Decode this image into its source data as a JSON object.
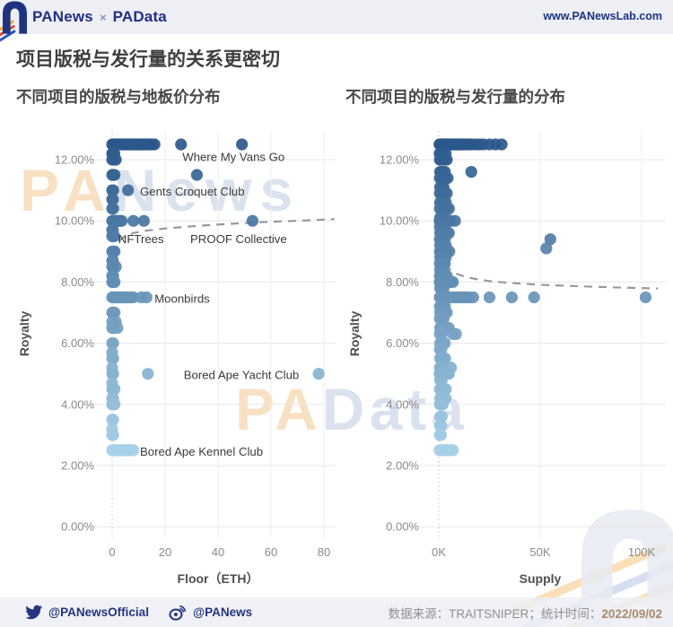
{
  "header": {
    "brand1": "PANews",
    "separator": "×",
    "brand2": "PAData",
    "website": "www.PANewsLab.com"
  },
  "title": "项目版税与发行量的关系更密切",
  "watermarks": {
    "wm_top": "PANews",
    "wm_top_pa": "PA",
    "wm_top_rest": "News",
    "wm_mid_pa": "PA",
    "wm_mid_rest": "Data"
  },
  "footer": {
    "twitter_handle": "@PANewsOfficial",
    "weibo_handle": "@PANews",
    "source_label": "数据来源：",
    "source_value": "TRAITSNIPER；",
    "time_label": "统计时间：",
    "date": "2022/09/02"
  },
  "colors": {
    "brand_navy": "#1e3480",
    "stripe_orange": "#f5a63b",
    "stripe_red": "#e2492e",
    "stripe_blue": "#2b55c8",
    "point_dark": "#2b588a",
    "point_light": "#a6d0e8",
    "trend_gray": "#999999",
    "grid_gray": "#e7e7e7",
    "zero_line_gray": "#c4c4c4",
    "tick_gray": "#8a8a8a",
    "axis_title_gray": "#4f4f4f",
    "annotation_gray": "#3a3a3a",
    "bar_bg": "#edeff5",
    "date_orange": "#a98a6a"
  },
  "chart_data": [
    {
      "type": "scatter",
      "title": "不同项目的版税与地板价分布",
      "xlabel": "Floor（ETH）",
      "ylabel": "Royalty",
      "x_unit": "ETH",
      "xlim": [
        0,
        85
      ],
      "ylim": [
        0,
        12.9
      ],
      "grid": true,
      "legend": "none",
      "color_encoding": "royalty value: light blue (low) to dark steel blue (high)",
      "xticks": [
        {
          "v": 0,
          "label": "0"
        },
        {
          "v": 20,
          "label": "20"
        },
        {
          "v": 40,
          "label": "40"
        },
        {
          "v": 60,
          "label": "60"
        },
        {
          "v": 80,
          "label": "80"
        }
      ],
      "yticks": [
        {
          "v": 0,
          "label": "0.00%"
        },
        {
          "v": 2,
          "label": "2.00%"
        },
        {
          "v": 4,
          "label": "4.00%"
        },
        {
          "v": 6,
          "label": "6.00%"
        },
        {
          "v": 8,
          "label": "8.00%"
        },
        {
          "v": 10,
          "label": "10.00%"
        },
        {
          "v": 12,
          "label": "12.00%"
        }
      ],
      "trend_style": "dashed",
      "trend": [
        [
          1.2,
          8.4
        ],
        [
          1.4,
          8.8
        ],
        [
          1.7,
          9.05
        ],
        [
          2,
          9.2
        ],
        [
          3,
          9.38
        ],
        [
          5,
          9.5
        ],
        [
          8,
          9.6
        ],
        [
          12,
          9.67
        ],
        [
          20,
          9.75
        ],
        [
          30,
          9.82
        ],
        [
          40,
          9.88
        ],
        [
          50,
          9.93
        ],
        [
          60,
          9.97
        ],
        [
          70,
          10.0
        ],
        [
          80,
          10.04
        ],
        [
          84,
          10.06
        ]
      ],
      "annotations": [
        {
          "text": "Where My Vans Go",
          "x": 26.5,
          "y": 12.1,
          "point": [
            49,
            12.5
          ]
        },
        {
          "text": "Gents Croquet Club",
          "x": 10.5,
          "y": 10.97,
          "point": [
            6,
            11
          ]
        },
        {
          "text": "NFTrees",
          "x": 2.3,
          "y": 9.42,
          "point": [
            0.5,
            9.5
          ]
        },
        {
          "text": "PROOF Collective",
          "x": 29.5,
          "y": 9.42,
          "point": [
            53,
            10
          ]
        },
        {
          "text": "Moonbirds",
          "x": 16,
          "y": 7.47,
          "point": [
            13,
            7.5
          ]
        },
        {
          "text": "Bored Ape Yacht Club",
          "x": 27,
          "y": 4.97,
          "point": [
            78,
            5
          ]
        },
        {
          "text": "Bored Ape Kennel Club",
          "x": 10.5,
          "y": 2.47,
          "point": [
            8,
            2.5
          ]
        }
      ],
      "point_rows": [
        {
          "y": 12.5,
          "x": [
            0,
            0.4,
            0.8,
            1.2,
            1.6,
            2,
            2.5,
            3,
            3.5,
            4,
            4.5,
            5,
            5.5,
            6,
            6.5,
            7,
            7.5,
            8,
            8.5,
            9,
            9.5,
            10,
            10.5,
            11,
            11.5,
            12,
            12.5,
            13,
            13.5,
            14,
            15,
            16,
            26,
            49
          ]
        },
        {
          "y": 12.2,
          "x": [
            0,
            0.4,
            0.8
          ]
        },
        {
          "y": 12.0,
          "x": [
            0,
            0.4,
            0.9,
            1.4
          ]
        },
        {
          "y": 11.5,
          "x": [
            0,
            0.4,
            0.9,
            32
          ]
        },
        {
          "y": 11.0,
          "x": [
            0,
            0.4,
            6
          ]
        },
        {
          "y": 10.7,
          "x": [
            0,
            0.3
          ]
        },
        {
          "y": 10.4,
          "x": [
            0,
            0.4
          ]
        },
        {
          "y": 10.0,
          "x": [
            0,
            0.4,
            0.8,
            1.2,
            1.8,
            2.4,
            3,
            3.6,
            8,
            12,
            53
          ]
        },
        {
          "y": 9.7,
          "x": [
            0,
            0.3
          ]
        },
        {
          "y": 9.5,
          "x": [
            0,
            0.4,
            0.8
          ]
        },
        {
          "y": 9.0,
          "x": [
            0,
            0.4,
            0.9
          ]
        },
        {
          "y": 8.7,
          "x": [
            0,
            0.3
          ]
        },
        {
          "y": 8.5,
          "x": [
            0,
            0.4,
            1.4
          ]
        },
        {
          "y": 8.2,
          "x": [
            0,
            0.4
          ]
        },
        {
          "y": 8.0,
          "x": [
            0,
            0.4,
            0.9
          ]
        },
        {
          "y": 7.5,
          "x": [
            0,
            0.4,
            0.8,
            1.2,
            1.6,
            2,
            2.5,
            3,
            3.5,
            4,
            4.5,
            5,
            5.5,
            6,
            6.5,
            7,
            8,
            11,
            13
          ]
        },
        {
          "y": 7.0,
          "x": [
            0,
            0.4,
            0.9
          ]
        },
        {
          "y": 6.7,
          "x": [
            0,
            1.4
          ]
        },
        {
          "y": 6.5,
          "x": [
            0,
            0.4,
            0.9,
            2
          ]
        },
        {
          "y": 6.0,
          "x": [
            0,
            0.4
          ]
        },
        {
          "y": 5.7,
          "x": [
            0
          ]
        },
        {
          "y": 5.5,
          "x": [
            0,
            0.4
          ]
        },
        {
          "y": 5.2,
          "x": [
            0
          ]
        },
        {
          "y": 5.0,
          "x": [
            0,
            0.4,
            13.5,
            78
          ]
        },
        {
          "y": 4.7,
          "x": [
            0
          ]
        },
        {
          "y": 4.5,
          "x": [
            0,
            0.4,
            0.9
          ]
        },
        {
          "y": 4.2,
          "x": [
            0,
            0.4
          ]
        },
        {
          "y": 4.0,
          "x": [
            0,
            0.4,
            0.9
          ]
        },
        {
          "y": 3.5,
          "x": [
            0,
            0.4
          ]
        },
        {
          "y": 3.2,
          "x": [
            0
          ]
        },
        {
          "y": 3.0,
          "x": [
            0,
            0.4
          ]
        },
        {
          "y": 2.5,
          "x": [
            0,
            0.5,
            1,
            1.5,
            2,
            2.5,
            3,
            3.5,
            4,
            4.5,
            5,
            5.5,
            6,
            6.5,
            7,
            7.5,
            8
          ]
        }
      ]
    },
    {
      "type": "scatter",
      "title": "不同项目的版税与发行量的分布",
      "xlabel": "Supply",
      "ylabel": "Royalty",
      "x_unit": "thousand tokens (K)",
      "xlim": [
        0,
        110
      ],
      "ylim": [
        0,
        12.9
      ],
      "grid": true,
      "legend": "none",
      "color_encoding": "royalty value: light blue (low) to dark steel blue (high)",
      "xticks": [
        {
          "v": 0,
          "label": "0K"
        },
        {
          "v": 50,
          "label": "50K"
        },
        {
          "v": 100,
          "label": "100K"
        }
      ],
      "yticks": [
        {
          "v": 0,
          "label": "0.00%"
        },
        {
          "v": 2,
          "label": "2.00%"
        },
        {
          "v": 4,
          "label": "4.00%"
        },
        {
          "v": 6,
          "label": "6.00%"
        },
        {
          "v": 8,
          "label": "8.00%"
        },
        {
          "v": 10,
          "label": "10.00%"
        },
        {
          "v": 12,
          "label": "12.00%"
        }
      ],
      "trend_style": "dashed",
      "trend": [
        [
          0.4,
          9.5
        ],
        [
          0.8,
          9.2
        ],
        [
          1.5,
          8.95
        ],
        [
          2.5,
          8.72
        ],
        [
          4,
          8.52
        ],
        [
          6,
          8.38
        ],
        [
          9,
          8.26
        ],
        [
          13,
          8.17
        ],
        [
          18,
          8.1
        ],
        [
          25,
          8.03
        ],
        [
          35,
          7.97
        ],
        [
          50,
          7.91
        ],
        [
          65,
          7.87
        ],
        [
          80,
          7.84
        ],
        [
          95,
          7.81
        ],
        [
          108,
          7.79
        ]
      ],
      "annotations": [],
      "point_rows": [
        {
          "y": 12.5,
          "x": [
            0.3,
            0.7,
            1.1,
            1.5,
            1.9,
            2.3,
            2.7,
            3.1,
            3.5,
            3.9,
            4.3,
            4.7,
            5.1,
            5.5,
            6,
            6.5,
            7,
            7.5,
            8,
            8.5,
            9,
            9.5,
            10,
            10.5,
            11,
            12,
            13,
            14,
            15,
            16,
            18,
            20,
            22,
            25,
            28,
            31
          ]
        },
        {
          "y": 12.2,
          "x": [
            0.4,
            1,
            1.6,
            2.2,
            3.4
          ]
        },
        {
          "y": 12.0,
          "x": [
            0.5,
            1.2,
            2,
            3,
            4
          ]
        },
        {
          "y": 11.6,
          "x": [
            0.6,
            1.4,
            2.2,
            3,
            16
          ]
        },
        {
          "y": 11.4,
          "x": [
            0.5,
            1.2,
            2,
            2.8,
            3.6,
            4.4
          ]
        },
        {
          "y": 11.1,
          "x": [
            0.6,
            1.4,
            2.4
          ]
        },
        {
          "y": 10.9,
          "x": [
            0.5,
            1.2,
            2,
            3,
            4
          ]
        },
        {
          "y": 10.6,
          "x": [
            0.6,
            1.5,
            2.5,
            3.5
          ]
        },
        {
          "y": 10.4,
          "x": [
            0.5,
            1.3,
            2.2,
            3.1,
            4,
            5
          ]
        },
        {
          "y": 10.1,
          "x": [
            0.6,
            1.4,
            2.3,
            3.2
          ]
        },
        {
          "y": 10.0,
          "x": [
            0.4,
            1,
            1.6,
            2.4,
            3.2,
            4,
            5,
            6,
            8
          ]
        },
        {
          "y": 9.8,
          "x": [
            0.5,
            1.3,
            2.1,
            3
          ]
        },
        {
          "y": 9.6,
          "x": [
            0.6,
            1.4,
            2.2,
            3,
            4,
            5
          ]
        },
        {
          "y": 9.4,
          "x": [
            0.5,
            1.2,
            2,
            3,
            55
          ]
        },
        {
          "y": 9.2,
          "x": [
            0.6,
            1.4,
            2.2,
            3.5
          ]
        },
        {
          "y": 9.1,
          "x": [
            53
          ]
        },
        {
          "y": 9.0,
          "x": [
            0.5,
            1.2,
            2,
            2.8,
            3.6,
            4.4,
            5.2
          ]
        },
        {
          "y": 8.8,
          "x": [
            0.6,
            1.4,
            2.4,
            3.4
          ]
        },
        {
          "y": 8.6,
          "x": [
            0.5,
            1.3,
            2.2,
            3
          ]
        },
        {
          "y": 8.4,
          "x": [
            0.6,
            1.4,
            2.3
          ]
        },
        {
          "y": 8.2,
          "x": [
            0.5,
            1.2,
            2,
            3,
            4
          ]
        },
        {
          "y": 8.0,
          "x": [
            0.4,
            1,
            1.8,
            2.6,
            3.4,
            4.2,
            5,
            6,
            7
          ]
        },
        {
          "y": 7.8,
          "x": [
            0.6,
            1.5,
            2.5
          ]
        },
        {
          "y": 7.5,
          "x": [
            0.4,
            1,
            1.6,
            2.2,
            2.8,
            3.4,
            4,
            4.6,
            5.2,
            6,
            7,
            8,
            9,
            10,
            11,
            12,
            13,
            14,
            15,
            17,
            25,
            36,
            47,
            102
          ]
        },
        {
          "y": 7.2,
          "x": [
            0.5,
            1.3,
            2.2,
            3
          ]
        },
        {
          "y": 7.0,
          "x": [
            0.6,
            1.4,
            2.3,
            3.2,
            4
          ]
        },
        {
          "y": 6.8,
          "x": [
            0.5,
            1.4,
            2.4
          ]
        },
        {
          "y": 6.5,
          "x": [
            0.6,
            1.3,
            2.1,
            3,
            4,
            5
          ]
        },
        {
          "y": 6.3,
          "x": [
            0.5,
            1.5,
            7,
            8.5
          ]
        },
        {
          "y": 6.0,
          "x": [
            0.6,
            1.4,
            2.2,
            3
          ]
        },
        {
          "y": 5.8,
          "x": [
            0.5,
            1.3
          ]
        },
        {
          "y": 5.5,
          "x": [
            0.6,
            1.4,
            2.3,
            3.2
          ]
        },
        {
          "y": 5.2,
          "x": [
            0.5,
            1.4,
            6
          ]
        },
        {
          "y": 5.0,
          "x": [
            0.4,
            1,
            1.8,
            2.6,
            3.4,
            4.2,
            5
          ]
        },
        {
          "y": 4.8,
          "x": [
            0.6,
            1.5
          ]
        },
        {
          "y": 4.5,
          "x": [
            0.5,
            1.3,
            2.2,
            3.5
          ]
        },
        {
          "y": 4.2,
          "x": [
            0.6,
            1.6,
            3.4
          ]
        },
        {
          "y": 4.0,
          "x": [
            0.5,
            1.2,
            2
          ]
        },
        {
          "y": 3.6,
          "x": [
            0.7,
            1.5
          ]
        },
        {
          "y": 3.3,
          "x": [
            0.6,
            1.3
          ]
        },
        {
          "y": 3.0,
          "x": [
            0.5,
            1.1
          ]
        },
        {
          "y": 2.5,
          "x": [
            0.4,
            1,
            1.6,
            2.2,
            2.8,
            3.4,
            4,
            4.6,
            5.2,
            5.8,
            6.4,
            7
          ]
        }
      ]
    }
  ]
}
